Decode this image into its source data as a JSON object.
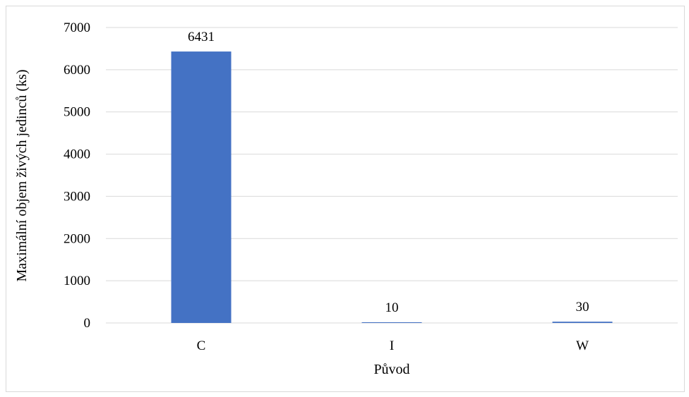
{
  "chart_data": {
    "type": "bar",
    "title": "",
    "xlabel": "Původ",
    "ylabel": "Maximální objem živých jedinců (ks)",
    "categories": [
      "C",
      "I",
      "W"
    ],
    "values": [
      6431,
      10,
      30
    ],
    "data_labels": [
      "6431",
      "10",
      "30"
    ],
    "ylim": [
      0,
      7000
    ],
    "yticks": [
      0,
      1000,
      2000,
      3000,
      4000,
      5000,
      6000,
      7000
    ],
    "ytick_labels": [
      "0",
      "1000",
      "2000",
      "3000",
      "4000",
      "5000",
      "6000",
      "7000"
    ],
    "grid": true,
    "legend": "none",
    "bar_color": "#4472C4",
    "grid_color": "#d9d9d9"
  }
}
